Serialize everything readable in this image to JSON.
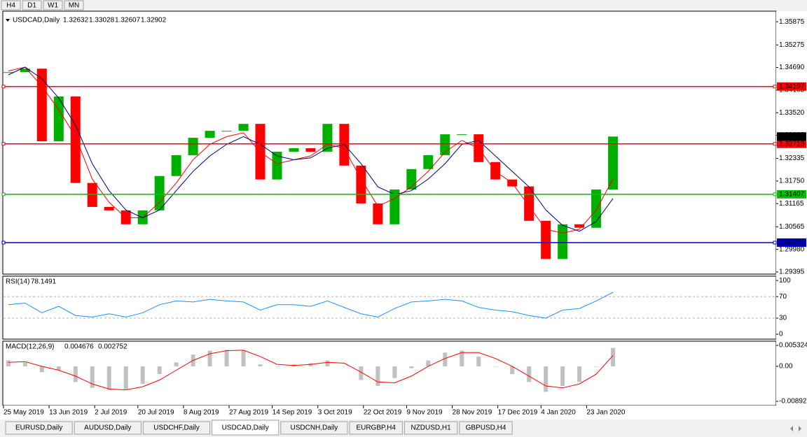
{
  "toolbar": {
    "timeframes": [
      "H4",
      "D1",
      "W1",
      "MN"
    ]
  },
  "chart_data": [
    {
      "type": "candlestick",
      "title": "USDCAD,Daily",
      "subtitle": [
        1.32632,
        1.33028,
        1.32607,
        1.32902
      ],
      "x": [
        "2019-05-27",
        "2019-06-03",
        "2019-06-10",
        "2019-06-17",
        "2019-06-24",
        "2019-07-01",
        "2019-07-08",
        "2019-07-15",
        "2019-07-22",
        "2019-07-29",
        "2019-08-05",
        "2019-08-12",
        "2019-08-19",
        "2019-08-26",
        "2019-09-02",
        "2019-09-09",
        "2019-09-16",
        "2019-09-23",
        "2019-09-30",
        "2019-10-07",
        "2019-10-14",
        "2019-10-21",
        "2019-10-28",
        "2019-11-04",
        "2019-11-11",
        "2019-11-18",
        "2019-11-25",
        "2019-12-02",
        "2019-12-09",
        "2019-12-16",
        "2019-12-23",
        "2019-12-30",
        "2020-01-06",
        "2020-01-13",
        "2020-01-20",
        "2020-01-27",
        "2020-02-03"
      ],
      "values": [
        1.3457,
        1.3466,
        1.3278,
        1.3394,
        1.317,
        1.3108,
        1.3099,
        1.3063,
        1.3099,
        1.3188,
        1.3242,
        1.3287,
        1.3305,
        1.3305,
        1.3323,
        1.3179,
        1.3251,
        1.326,
        1.3251,
        1.3323,
        1.3215,
        1.3117,
        1.3063,
        1.3153,
        1.3206,
        1.3242,
        1.3296,
        1.3296,
        1.3224,
        1.3179,
        1.3161,
        1.3072,
        1.2973,
        1.3063,
        1.3054,
        1.3153,
        1.32902
      ],
      "up_color": "#00b000",
      "down_color": "#ff0000",
      "series": [
        {
          "color": "#ff0000",
          "values": [
            1.346,
            1.347,
            1.342,
            1.336,
            1.329,
            1.318,
            1.312,
            1.308,
            1.308,
            1.312,
            1.317,
            1.323,
            1.327,
            1.329,
            1.33,
            1.325,
            1.322,
            1.323,
            1.324,
            1.327,
            1.326,
            1.318,
            1.311,
            1.313,
            1.316,
            1.32,
            1.325,
            1.328,
            1.326,
            1.32,
            1.317,
            1.311,
            1.305,
            1.304,
            1.305,
            1.31,
            1.318
          ]
        },
        {
          "color": "#000080",
          "values": [
            1.345,
            1.347,
            1.344,
            1.339,
            1.332,
            1.322,
            1.315,
            1.31,
            1.308,
            1.31,
            1.315,
            1.32,
            1.324,
            1.327,
            1.329,
            1.327,
            1.324,
            1.323,
            1.3235,
            1.326,
            1.327,
            1.322,
            1.316,
            1.314,
            1.315,
            1.318,
            1.322,
            1.327,
            1.328,
            1.324,
            1.32,
            1.316,
            1.31,
            1.306,
            1.3045,
            1.307,
            1.313
          ]
        }
      ],
      "levels": [
        {
          "value": 1.34197,
          "color": "#ff0000"
        },
        {
          "value": 1.32713,
          "color": "#ff0000"
        },
        {
          "value": 1.31407,
          "color": "#00c000"
        },
        {
          "value": 1.30155,
          "color": "#0000c0"
        }
      ],
      "xlim": [
        "2019-05-25",
        "2020-04-11"
      ],
      "xticks": [
        {
          "value": "2019-05-25",
          "label": "25 May 2019"
        },
        {
          "value": "2019-06-13",
          "label": "13 Jun 2019"
        },
        {
          "value": "2019-07-02",
          "label": "2 Jul 2019"
        },
        {
          "value": "2019-07-20",
          "label": "20 Jul 2019"
        },
        {
          "value": "2019-08-08",
          "label": "8 Aug 2019"
        },
        {
          "value": "2019-08-27",
          "label": "27 Aug 2019"
        },
        {
          "value": "2019-09-14",
          "label": "14 Sep 2019"
        },
        {
          "value": "2019-10-03",
          "label": "3 Oct 2019"
        },
        {
          "value": "2019-10-22",
          "label": "22 Oct 2019"
        },
        {
          "value": "2019-11-09",
          "label": "9 Nov 2019"
        },
        {
          "value": "2019-11-28",
          "label": "28 Nov 2019"
        },
        {
          "value": "2019-12-17",
          "label": "17 Dec 2019"
        },
        {
          "value": "2020-01-04",
          "label": "4 Jan 2020"
        },
        {
          "value": "2020-01-23",
          "label": "23 Jan 2020"
        }
      ],
      "ylim": [
        1.2934,
        1.3604
      ],
      "yticks": [
        1.35875,
        1.35275,
        {
          "value": 1.3469,
          "label": "1.34690"
        },
        1.34105,
        {
          "value": 1.3352,
          "label": "1.33520"
        },
        1.32935,
        1.32335,
        {
          "value": 1.3175,
          "label": "1.31750"
        },
        1.31165,
        1.30565,
        {
          "value": 1.2998,
          "label": "1.29980"
        },
        1.29395
      ]
    },
    {
      "type": "line",
      "title": "RSI(14)",
      "color": "#1e90ff",
      "values": [
        55,
        58,
        40,
        52,
        35,
        32,
        38,
        32,
        40,
        55,
        62,
        60,
        65,
        62,
        60,
        45,
        55,
        55,
        52,
        62,
        50,
        38,
        32,
        48,
        60,
        62,
        65,
        62,
        50,
        45,
        42,
        35,
        30,
        45,
        48,
        62,
        78.1491
      ],
      "ylim": [
        -9,
        108
      ],
      "yticks": [
        100,
        70,
        30,
        0
      ],
      "grid": true
    },
    {
      "type": "macd",
      "title": "MACD(12,26,9)",
      "series": [
        {
          "color": "#c0c0c0",
          "values": [
            0.0015,
            0.001,
            -0.0015,
            -0.001,
            -0.004,
            -0.0055,
            -0.006,
            -0.0058,
            -0.0045,
            -0.002,
            0.001,
            0.003,
            0.004,
            0.0042,
            0.004,
            0.0005,
            0.0,
            0.0005,
            0.0008,
            0.0015,
            0.0,
            -0.0035,
            -0.005,
            -0.003,
            -0.0005,
            0.0015,
            0.0035,
            0.004,
            0.0025,
            0.0,
            -0.002,
            -0.004,
            -0.0065,
            -0.005,
            -0.004,
            0.0,
            0.004676
          ]
        },
        {
          "color": "#ff0000",
          "values": [
            0.001,
            0.0012,
            0.0,
            -0.001,
            -0.0025,
            -0.0045,
            -0.0058,
            -0.006,
            -0.0052,
            -0.0035,
            -0.001,
            0.0015,
            0.0032,
            0.004,
            0.0041,
            0.0025,
            0.0005,
            0.0002,
            0.0005,
            0.001,
            0.0008,
            -0.0015,
            -0.004,
            -0.0042,
            -0.0025,
            0.0,
            0.002,
            0.0035,
            0.0035,
            0.002,
            0.0,
            -0.0025,
            -0.005,
            -0.0055,
            -0.0045,
            -0.002,
            0.002752
          ]
        }
      ],
      "ylim": [
        -0.01,
        0.0064
      ],
      "yticks": [
        0.005324,
        {
          "value": 0,
          "label": "0.00"
        },
        -0.008929
      ]
    }
  ],
  "tabs": [
    "EURUSD,Daily",
    "AUDUSD,Daily",
    "USDCHF,Daily",
    "USDCAD,Daily",
    "USDCNH,Daily",
    "EURGBP,H4",
    "NZDUSD,H1",
    "GBPUSD,H4"
  ],
  "active_tab": 3
}
